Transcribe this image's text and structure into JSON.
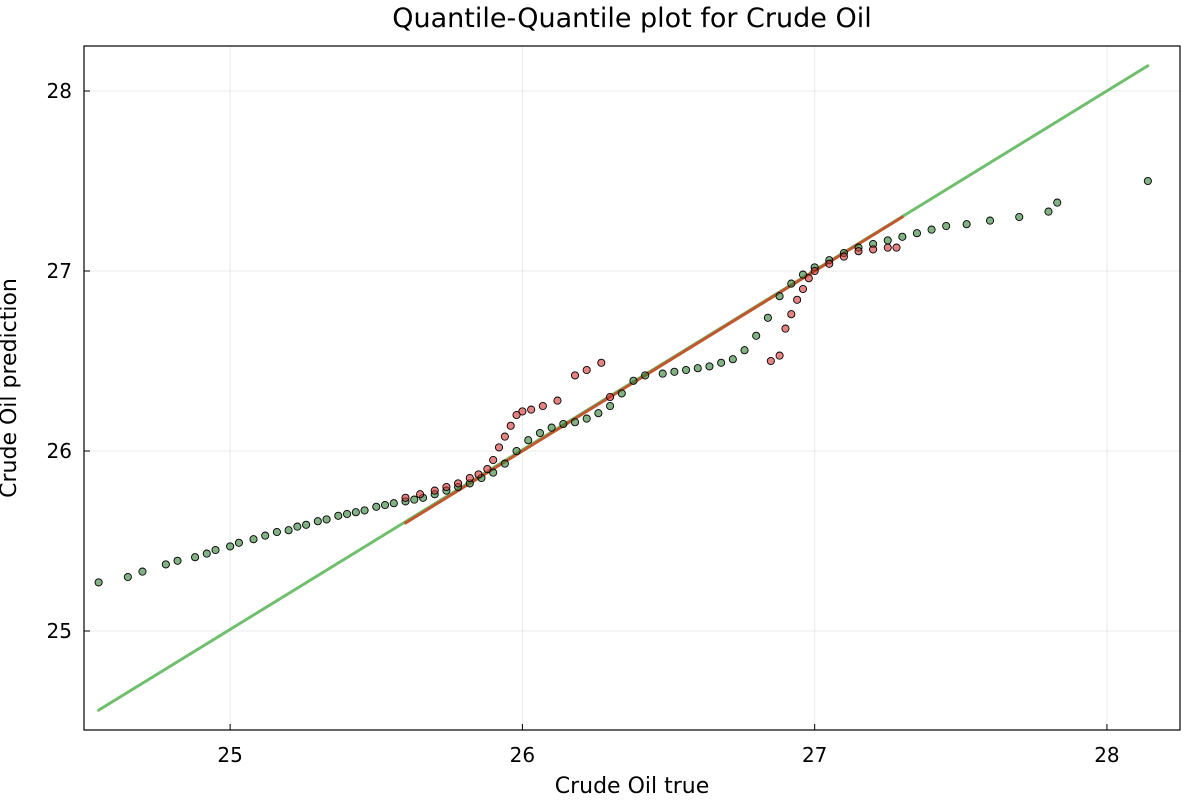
{
  "chart_data": {
    "type": "scatter",
    "title": "Quantile-Quantile plot for Crude Oil",
    "xlabel": "Crude Oil true",
    "ylabel": "Crude Oil prediction",
    "xlim": [
      24.5,
      28.25
    ],
    "ylim": [
      24.45,
      28.25
    ],
    "xticks": [
      25,
      26,
      27,
      28
    ],
    "yticks": [
      25,
      26,
      27,
      28
    ],
    "grid": true,
    "legend": "none",
    "colors": {
      "green_points": "#2e7d32",
      "red_points": "#d32f2f",
      "green_line": "#6fbf6f",
      "red_line": "#c0582e"
    },
    "series": [
      {
        "kind": "line",
        "color": "green_line",
        "x": [
          24.55,
          28.14
        ],
        "y": [
          24.56,
          28.14
        ]
      },
      {
        "kind": "line",
        "color": "red_line",
        "x": [
          25.6,
          27.3
        ],
        "y": [
          25.6,
          27.3
        ]
      },
      {
        "kind": "scatter",
        "color": "green_points",
        "x": [
          24.55,
          24.65,
          24.7,
          24.78,
          24.82,
          24.88,
          24.92,
          24.95,
          25.0,
          25.03,
          25.08,
          25.12,
          25.16,
          25.2,
          25.23,
          25.26,
          25.3,
          25.33,
          25.37,
          25.4,
          25.43,
          25.46,
          25.5,
          25.53,
          25.56,
          25.6,
          25.63,
          25.66,
          25.7,
          25.74,
          25.78,
          25.82,
          25.86,
          25.9,
          25.94,
          25.98,
          26.02,
          26.06,
          26.1,
          26.14,
          26.18,
          26.22,
          26.26,
          26.3,
          26.34,
          26.38,
          26.42,
          26.48,
          26.52,
          26.56,
          26.6,
          26.64,
          26.68,
          26.72,
          26.76,
          26.8,
          26.84,
          26.88,
          26.92,
          26.96,
          27.0,
          27.05,
          27.1,
          27.15,
          27.2,
          27.25,
          27.3,
          27.35,
          27.4,
          27.45,
          27.52,
          27.6,
          27.7,
          27.8,
          27.83,
          28.14
        ],
        "y": [
          25.27,
          25.3,
          25.33,
          25.37,
          25.39,
          25.41,
          25.43,
          25.45,
          25.47,
          25.49,
          25.51,
          25.53,
          25.55,
          25.56,
          25.58,
          25.59,
          25.61,
          25.62,
          25.64,
          25.65,
          25.66,
          25.67,
          25.69,
          25.7,
          25.71,
          25.72,
          25.73,
          25.74,
          25.76,
          25.78,
          25.8,
          25.82,
          25.85,
          25.88,
          25.93,
          26.0,
          26.06,
          26.1,
          26.13,
          26.15,
          26.16,
          26.18,
          26.21,
          26.25,
          26.32,
          26.39,
          26.42,
          26.43,
          26.44,
          26.45,
          26.46,
          26.47,
          26.49,
          26.51,
          26.56,
          26.64,
          26.74,
          26.86,
          26.93,
          26.98,
          27.02,
          27.06,
          27.1,
          27.13,
          27.15,
          27.17,
          27.19,
          27.21,
          27.23,
          27.25,
          27.26,
          27.28,
          27.3,
          27.33,
          27.38,
          27.5
        ]
      },
      {
        "kind": "scatter",
        "color": "red_points",
        "x": [
          25.6,
          25.65,
          25.7,
          25.74,
          25.78,
          25.82,
          25.85,
          25.88,
          25.9,
          25.92,
          25.94,
          25.96,
          25.98,
          26.0,
          26.03,
          26.07,
          26.12,
          26.18,
          26.22,
          26.27,
          26.3,
          26.85,
          26.88,
          26.9,
          26.92,
          26.94,
          26.96,
          26.98,
          27.0,
          27.05,
          27.1,
          27.15,
          27.2,
          27.25,
          27.28
        ],
        "y": [
          25.74,
          25.76,
          25.78,
          25.8,
          25.82,
          25.85,
          25.87,
          25.9,
          25.95,
          26.02,
          26.08,
          26.14,
          26.2,
          26.22,
          26.23,
          26.25,
          26.28,
          26.42,
          26.45,
          26.49,
          26.3,
          26.5,
          26.53,
          26.68,
          26.76,
          26.84,
          26.9,
          26.96,
          27.0,
          27.04,
          27.08,
          27.11,
          27.12,
          27.13,
          27.13
        ]
      }
    ]
  }
}
